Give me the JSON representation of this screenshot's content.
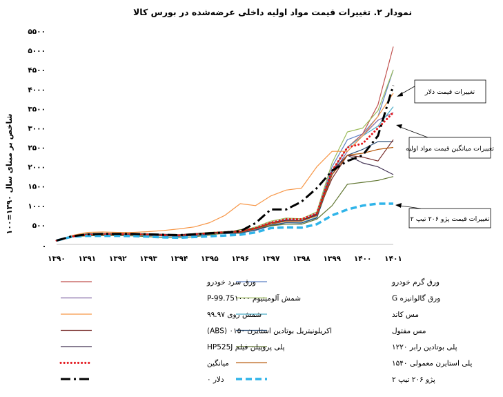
{
  "chart_data": {
    "type": "line",
    "title": "نمودار ۲. تغییرات قیمت مواد اولیه داخلی عرضه‌شده در بورس کالا",
    "ylabel": "شاخص بر مبنای سال ۱۳۹۰=۱۰۰",
    "xlabel": "",
    "ylim": [
      0,
      5500
    ],
    "grid": "none",
    "x_ticks": [
      "۱۳۹۰",
      "۱۳۹۱",
      "۱۳۹۲",
      "۱۳۹۳",
      "۱۳۹۴",
      "۱۳۹۵",
      "۱۳۹۶",
      "۱۳۹۷",
      "۱۳۹۸",
      "۱۳۹۹",
      "۱۴۰۰",
      "۱۴۰۱"
    ],
    "y_ticks": [
      {
        "value": 0,
        "label": "."
      },
      {
        "value": 500,
        "label": "۵۰۰"
      },
      {
        "value": 1000,
        "label": "۱۰۰۰"
      },
      {
        "value": 1500,
        "label": "۱۵۰۰"
      },
      {
        "value": 2000,
        "label": "۲۰۰۰"
      },
      {
        "value": 2500,
        "label": "۲۵۰۰"
      },
      {
        "value": 3000,
        "label": "۳۰۰۰"
      },
      {
        "value": 3500,
        "label": "۳۵۰۰"
      },
      {
        "value": 4000,
        "label": "۴۰۰۰"
      },
      {
        "value": 4500,
        "label": "۴۵۰۰"
      },
      {
        "value": 5000,
        "label": "۵۰۰۰"
      },
      {
        "value": 5500,
        "label": "۵۵۰۰"
      }
    ],
    "x": [
      0,
      0.5,
      1,
      1.5,
      2,
      2.5,
      3,
      3.5,
      4,
      4.5,
      5,
      5.5,
      6,
      6.5,
      7,
      7.5,
      8,
      8.5,
      9,
      9.5,
      10,
      10.5,
      11
    ],
    "series": [
      {
        "name": "ورق گرم خودرو",
        "color": "#5b7fc4",
        "style": "solid",
        "width": 1.2,
        "values": [
          100,
          200,
          260,
          270,
          280,
          280,
          260,
          240,
          230,
          260,
          290,
          310,
          320,
          420,
          560,
          640,
          620,
          800,
          2000,
          2700,
          2850,
          3300,
          4500
        ]
      },
      {
        "name": "ورق سرد خودرو",
        "color": "#c0504d",
        "style": "solid",
        "width": 1.2,
        "values": [
          100,
          200,
          240,
          260,
          270,
          280,
          270,
          250,
          240,
          260,
          280,
          320,
          330,
          400,
          520,
          600,
          600,
          760,
          1900,
          2500,
          2850,
          3600,
          5100
        ]
      },
      {
        "name": "ورق گالوانیزه G",
        "color": "#9bbb59",
        "style": "solid",
        "width": 1.2,
        "values": [
          100,
          220,
          280,
          280,
          280,
          280,
          270,
          260,
          250,
          280,
          310,
          330,
          340,
          450,
          600,
          680,
          660,
          840,
          2100,
          2900,
          3000,
          3450,
          4500
        ]
      },
      {
        "name": "شمش آلومینیوم P-99.75۱۰۰۰",
        "color": "#8064a2",
        "style": "solid",
        "width": 1.2,
        "values": [
          100,
          190,
          230,
          250,
          260,
          260,
          240,
          220,
          210,
          240,
          270,
          290,
          300,
          360,
          480,
          560,
          560,
          700,
          1800,
          2400,
          2800,
          3200,
          3400
        ]
      },
      {
        "name": "مس کاتد",
        "color": "#4bacc6",
        "style": "solid",
        "width": 1.2,
        "values": [
          100,
          200,
          230,
          240,
          250,
          250,
          230,
          220,
          220,
          240,
          270,
          280,
          290,
          380,
          500,
          560,
          560,
          700,
          1850,
          2500,
          2800,
          3050,
          3550
        ]
      },
      {
        "name": "شمش روی ۹۹.۹۷",
        "color": "#f79646",
        "style": "solid",
        "width": 1.2,
        "values": [
          100,
          230,
          310,
          320,
          310,
          310,
          330,
          360,
          400,
          450,
          560,
          750,
          1050,
          1000,
          1250,
          1400,
          1450,
          2000,
          2400,
          2400,
          2800,
          3300,
          3900
        ]
      },
      {
        "name": "مس مفتول",
        "color": "#2c4d75",
        "style": "solid",
        "width": 1.2,
        "values": [
          100,
          200,
          240,
          250,
          250,
          250,
          230,
          220,
          210,
          230,
          260,
          280,
          290,
          370,
          490,
          560,
          550,
          680,
          1800,
          2300,
          2450,
          2650,
          2650
        ]
      },
      {
        "name": "اکریلونیتریل بوتادین استایرن ۰۱۵۰ (ABS)",
        "color": "#772c2a",
        "style": "solid",
        "width": 1.2,
        "values": [
          100,
          210,
          260,
          270,
          270,
          270,
          260,
          250,
          240,
          270,
          300,
          320,
          330,
          420,
          560,
          620,
          620,
          780,
          1700,
          2300,
          2250,
          2150,
          2700
        ]
      },
      {
        "name": "پلی بوتادین رابر ۱۲۲۰",
        "color": "#5f7530",
        "style": "solid",
        "width": 1.2,
        "values": [
          100,
          200,
          220,
          230,
          230,
          220,
          200,
          180,
          170,
          200,
          240,
          300,
          380,
          420,
          480,
          520,
          520,
          650,
          1000,
          1550,
          1600,
          1650,
          1750
        ]
      },
      {
        "name": "پلی پروپیلن فیلم HP525J",
        "color": "#403152",
        "style": "solid",
        "width": 1.2,
        "values": [
          100,
          210,
          270,
          280,
          280,
          280,
          270,
          260,
          250,
          280,
          300,
          310,
          320,
          410,
          530,
          620,
          620,
          760,
          1900,
          2300,
          2100,
          2000,
          1800
        ]
      },
      {
        "name": "پلی استایرن معمولی ۱۵۴۰",
        "color": "#b65708",
        "style": "solid",
        "width": 1.2,
        "values": [
          100,
          210,
          250,
          260,
          270,
          270,
          250,
          240,
          230,
          260,
          290,
          300,
          310,
          400,
          530,
          600,
          600,
          740,
          1800,
          2300,
          2350,
          2450,
          2500
        ]
      },
      {
        "name": "میانگین",
        "color": "#e3171c",
        "style": "dotted",
        "width": 3,
        "values": [
          100,
          205,
          250,
          260,
          265,
          265,
          255,
          240,
          235,
          260,
          290,
          315,
          340,
          420,
          560,
          650,
          650,
          800,
          1900,
          2500,
          2600,
          3000,
          3400
        ]
      },
      {
        "name": "پژو ۲۰۶ تیپ ۲",
        "color": "#2fb4e9",
        "style": "dashed",
        "width": 3.5,
        "values": [
          100,
          200,
          220,
          220,
          220,
          215,
          200,
          180,
          170,
          190,
          210,
          230,
          250,
          310,
          420,
          440,
          430,
          520,
          750,
          900,
          1000,
          1050,
          1050
        ]
      },
      {
        "name": "دلار ۰",
        "color": "#000000",
        "style": "dashdot",
        "width": 3,
        "values": [
          100,
          210,
          260,
          270,
          270,
          270,
          260,
          250,
          240,
          260,
          290,
          310,
          340,
          550,
          900,
          900,
          1100,
          1450,
          1900,
          2150,
          2300,
          2800,
          4100
        ]
      }
    ],
    "annotations": [
      {
        "text": "تغییرات قیمت دلار",
        "points_to_series": "دلار ۰"
      },
      {
        "text": "تغییرات میانگین  قیمت مواد اولیه",
        "points_to_series": "میانگین"
      },
      {
        "text": "تغییرات قیمت پژو ۲۰۶ تیپ ۲",
        "points_to_series": "پژو ۲۰۶ تیپ ۲"
      }
    ],
    "legend_position": "bottom"
  }
}
